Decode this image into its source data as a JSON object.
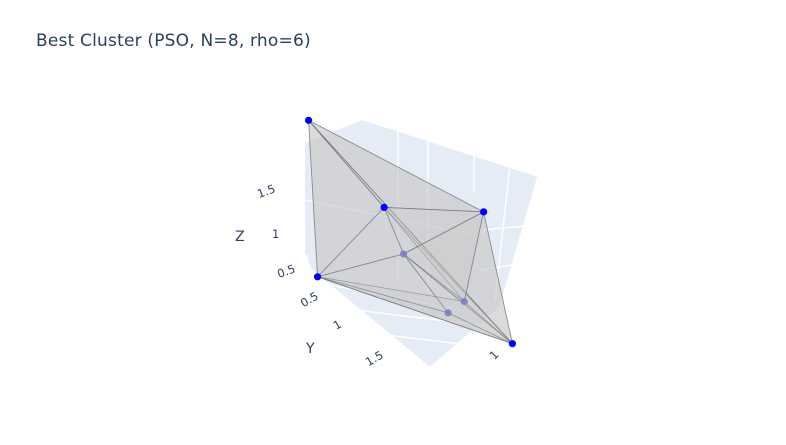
{
  "title": "Best Cluster (PSO, N=8, rho=6)",
  "colors": {
    "pane": "#e5ecf6",
    "grid": "#ffffff",
    "surface": "#c8c8c8",
    "edge": "#6e6e6e",
    "marker": "#0000ff",
    "text": "#2a3f5f"
  },
  "chart_data": {
    "type": "scatter3d",
    "mesh": "convex hull",
    "grid": true,
    "axes": {
      "x": {
        "label": "",
        "tick_labels": [
          "1"
        ]
      },
      "y": {
        "label": "Y",
        "tick_labels": [
          "0.5",
          "1",
          "1.5"
        ]
      },
      "z": {
        "label": "Z",
        "tick_labels": [
          "0.5",
          "1",
          "1.5"
        ]
      }
    },
    "points": [
      {
        "x": 0.05,
        "y": 0.1,
        "z": 1.95
      },
      {
        "x": 1.3,
        "y": 0.45,
        "z": 1.55
      },
      {
        "x": 0.55,
        "y": 0.55,
        "z": 1.35
      },
      {
        "x": 0.05,
        "y": 0.6,
        "z": 0.45
      },
      {
        "x": 1.4,
        "y": 1.3,
        "z": 0.45
      },
      {
        "x": 0.95,
        "y": 1.1,
        "z": 0.55
      },
      {
        "x": 0.7,
        "y": 0.5,
        "z": 0.9
      },
      {
        "x": 1.05,
        "y": 1.25,
        "z": 0.75
      }
    ]
  }
}
